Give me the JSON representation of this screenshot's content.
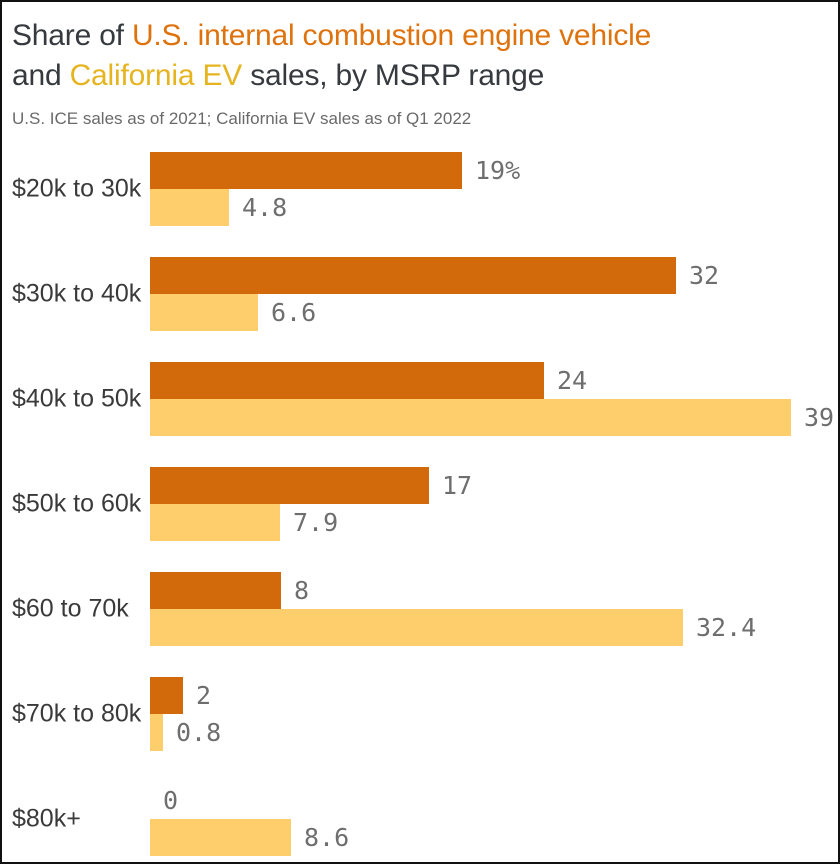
{
  "frame": {
    "background": "#FFFFFF",
    "border_color": "#111111"
  },
  "title": {
    "line1": [
      {
        "text": "Share of ",
        "color": "#363A3F"
      },
      {
        "text": "U.S. internal combustion engine vehicle",
        "color": "#DE730E"
      }
    ],
    "line2": [
      {
        "text": "and ",
        "color": "#363A3F"
      },
      {
        "text": "California EV",
        "color": "#E6B41F"
      },
      {
        "text": " sales, by MSRP range",
        "color": "#363A3F"
      }
    ]
  },
  "subtitle": "U.S. ICE sales as of 2021; California EV sales as of Q1 2022",
  "chart_data": {
    "type": "bar",
    "orientation": "horizontal",
    "title": "Share of U.S. internal combustion engine vehicle and California EV sales, by MSRP range",
    "subtitle": "U.S. ICE sales as of 2021; California EV sales as of Q1 2022",
    "categories": [
      "$20k to 30k",
      "$30k to 40k",
      "$40k to 50k",
      "$50k to 60k",
      "$60 to 70k",
      "$70k to 80k",
      "$80k+"
    ],
    "series": [
      {
        "name": "U.S. internal combustion engine vehicle",
        "color": "#D2690A",
        "values": [
          19,
          32,
          24,
          17,
          8,
          2,
          0
        ],
        "labels": [
          "19%",
          "32",
          "24",
          "17",
          "8",
          "2",
          "0"
        ]
      },
      {
        "name": "California EV",
        "color": "#FDCE6B",
        "values": [
          4.8,
          6.6,
          39,
          7.9,
          32.4,
          0.8,
          8.6
        ],
        "labels": [
          "4.8",
          "6.6",
          "39",
          "7.9",
          "32.4",
          "0.8",
          "8.6"
        ]
      }
    ],
    "xlim": [
      0,
      39
    ],
    "grid": false,
    "legend_position": "inline-in-title",
    "value_label_color": "#6E6E6E",
    "category_label_color": "#3A3A3A"
  }
}
